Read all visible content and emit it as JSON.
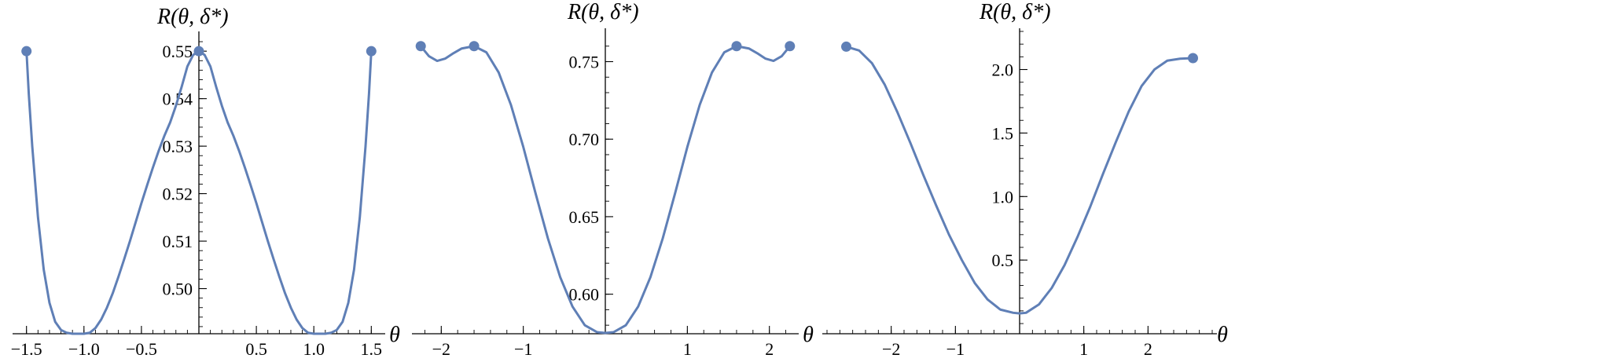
{
  "style": {
    "curve_color": "#5F7FB6",
    "axis_color": "#000000"
  },
  "chart_data": [
    {
      "type": "line",
      "title": "",
      "xlabel": "θ",
      "ylabel": "R(θ, δ*)",
      "xlim": [
        -1.58,
        1.58
      ],
      "ylim": [
        0.4905,
        0.5535
      ],
      "grid": false,
      "legend": "none",
      "xticks": [
        {
          "v": -1.5,
          "label": "−1.5"
        },
        {
          "v": -1.0,
          "label": "−1.0"
        },
        {
          "v": -0.5,
          "label": "−0.5"
        },
        {
          "v": 0.5,
          "label": "0.5"
        },
        {
          "v": 1.0,
          "label": "1.0"
        },
        {
          "v": 1.5,
          "label": "1.5"
        }
      ],
      "yticks": [
        {
          "v": 0.5,
          "label": "0.50"
        },
        {
          "v": 0.51,
          "label": "0.51"
        },
        {
          "v": 0.52,
          "label": "0.52"
        },
        {
          "v": 0.53,
          "label": "0.53"
        },
        {
          "v": 0.54,
          "label": "0.54"
        },
        {
          "v": 0.55,
          "label": "0.55"
        }
      ],
      "minor_x_step": 0.1,
      "minor_y_step": 0.002,
      "series": [
        {
          "x": [
            -1.5,
            -1.48,
            -1.45,
            -1.4,
            -1.35,
            -1.3,
            -1.25,
            -1.2,
            -1.15,
            -1.1,
            -1.05,
            -1.0,
            -0.95,
            -0.9,
            -0.85,
            -0.8,
            -0.75,
            -0.7,
            -0.65,
            -0.6,
            -0.55,
            -0.5,
            -0.45,
            -0.4,
            -0.35,
            -0.3,
            -0.25,
            -0.2,
            -0.15,
            -0.1,
            -0.05,
            0.0,
            0.05,
            0.1,
            0.15,
            0.2,
            0.25,
            0.3,
            0.35,
            0.4,
            0.45,
            0.5,
            0.55,
            0.6,
            0.65,
            0.7,
            0.75,
            0.8,
            0.85,
            0.9,
            0.95,
            1.0,
            1.05,
            1.1,
            1.15,
            1.2,
            1.25,
            1.3,
            1.35,
            1.4,
            1.45,
            1.48,
            1.5
          ],
          "y": [
            0.55,
            0.541,
            0.53,
            0.515,
            0.504,
            0.497,
            0.493,
            0.4913,
            0.4907,
            0.4905,
            0.4905,
            0.4905,
            0.4907,
            0.4917,
            0.4935,
            0.496,
            0.499,
            0.5025,
            0.5062,
            0.51,
            0.514,
            0.518,
            0.5218,
            0.5255,
            0.529,
            0.5322,
            0.535,
            0.5385,
            0.5425,
            0.5468,
            0.5492,
            0.55,
            0.5492,
            0.5468,
            0.5425,
            0.5385,
            0.535,
            0.5322,
            0.529,
            0.5255,
            0.5218,
            0.518,
            0.514,
            0.51,
            0.5062,
            0.5025,
            0.499,
            0.496,
            0.4935,
            0.4917,
            0.4907,
            0.4905,
            0.4905,
            0.4905,
            0.4907,
            0.4913,
            0.493,
            0.497,
            0.504,
            0.515,
            0.53,
            0.541,
            0.55
          ]
        }
      ],
      "points": [
        {
          "x": -1.5,
          "y": 0.55
        },
        {
          "x": 0.0,
          "y": 0.55
        },
        {
          "x": 1.5,
          "y": 0.55
        }
      ]
    },
    {
      "type": "line",
      "title": "",
      "xlabel": "θ",
      "ylabel": "R(θ, δ*)",
      "xlim": [
        -2.3,
        2.3
      ],
      "ylim": [
        0.5745,
        0.7695
      ],
      "grid": false,
      "legend": "none",
      "xticks": [
        {
          "v": -2,
          "label": "−2"
        },
        {
          "v": -1,
          "label": "−1"
        },
        {
          "v": 1,
          "label": "1"
        },
        {
          "v": 2,
          "label": "2"
        }
      ],
      "yticks": [
        {
          "v": 0.6,
          "label": "0.60"
        },
        {
          "v": 0.65,
          "label": "0.65"
        },
        {
          "v": 0.7,
          "label": "0.70"
        },
        {
          "v": 0.75,
          "label": "0.75"
        }
      ],
      "minor_x_step": 0.2,
      "minor_y_step": 0.01,
      "series": [
        {
          "x": [
            -2.25,
            -2.15,
            -2.05,
            -1.95,
            -1.85,
            -1.75,
            -1.6,
            -1.45,
            -1.3,
            -1.15,
            -1.0,
            -0.85,
            -0.7,
            -0.55,
            -0.4,
            -0.25,
            -0.1,
            0.0,
            0.1,
            0.25,
            0.4,
            0.55,
            0.7,
            0.85,
            1.0,
            1.15,
            1.3,
            1.45,
            1.6,
            1.75,
            1.85,
            1.95,
            2.05,
            2.15,
            2.25
          ],
          "y": [
            0.76,
            0.7535,
            0.7505,
            0.752,
            0.7555,
            0.7585,
            0.76,
            0.756,
            0.743,
            0.722,
            0.695,
            0.665,
            0.636,
            0.611,
            0.592,
            0.58,
            0.5755,
            0.575,
            0.5755,
            0.58,
            0.592,
            0.611,
            0.636,
            0.665,
            0.695,
            0.722,
            0.743,
            0.756,
            0.76,
            0.7585,
            0.7555,
            0.752,
            0.7505,
            0.7535,
            0.76
          ]
        }
      ],
      "points": [
        {
          "x": -2.25,
          "y": 0.76
        },
        {
          "x": -1.6,
          "y": 0.76
        },
        {
          "x": 1.6,
          "y": 0.76
        },
        {
          "x": 2.25,
          "y": 0.76
        }
      ]
    },
    {
      "type": "line",
      "title": "",
      "xlabel": "θ",
      "ylabel": "R(θ, δ*)",
      "xlim": [
        -3.0,
        3.0
      ],
      "ylim": [
        -0.08,
        2.3
      ],
      "grid": false,
      "legend": "none",
      "xticks": [
        {
          "v": -2,
          "label": "−2"
        },
        {
          "v": -1,
          "label": "−1"
        },
        {
          "v": 1,
          "label": "1"
        },
        {
          "v": 2,
          "label": "2"
        }
      ],
      "yticks": [
        {
          "v": 0.5,
          "label": "0.5"
        },
        {
          "v": 1.0,
          "label": "1.0"
        },
        {
          "v": 1.5,
          "label": "1.5"
        },
        {
          "v": 2.0,
          "label": "2.0"
        }
      ],
      "minor_x_step": 0.2,
      "minor_y_step": 0.1,
      "series": [
        {
          "x": [
            -2.7,
            -2.5,
            -2.3,
            -2.1,
            -1.9,
            -1.7,
            -1.5,
            -1.3,
            -1.1,
            -0.9,
            -0.7,
            -0.5,
            -0.3,
            -0.1,
            0.0,
            0.1,
            0.3,
            0.5,
            0.7,
            0.9,
            1.1,
            1.3,
            1.5,
            1.7,
            1.9,
            2.1,
            2.3,
            2.5,
            2.7
          ],
          "y": [
            2.18,
            2.15,
            2.05,
            1.88,
            1.66,
            1.42,
            1.17,
            0.93,
            0.7,
            0.5,
            0.32,
            0.19,
            0.11,
            0.085,
            0.08,
            0.085,
            0.15,
            0.28,
            0.46,
            0.68,
            0.92,
            1.18,
            1.43,
            1.67,
            1.87,
            2.0,
            2.07,
            2.085,
            2.09
          ]
        }
      ],
      "points": [
        {
          "x": -2.7,
          "y": 2.18
        },
        {
          "x": 2.7,
          "y": 2.09
        }
      ]
    }
  ]
}
